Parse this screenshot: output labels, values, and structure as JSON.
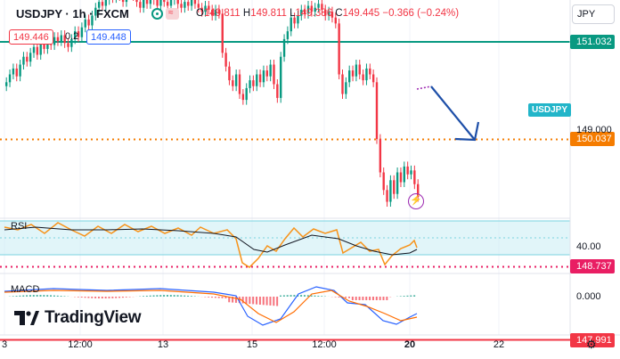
{
  "header": {
    "symbol": "USDJPY · 1h · FXCM",
    "open_label": "O",
    "open": "149.811",
    "high_label": "H",
    "high": "149.811",
    "low_label": "L",
    "low": "149.386",
    "close_label": "C",
    "close": "149.445",
    "change": "−0.366 (−0.24%)",
    "sell_price": "149.446",
    "spread": "0.2",
    "buy_price": "149.448"
  },
  "currency_button": "JPY",
  "price_tags": [
    {
      "value": "151.032",
      "color": "#089981",
      "price": 151.032
    },
    {
      "value": "150.037",
      "color": "#f57c00",
      "price": 150.037
    },
    {
      "value": "148.737",
      "color": "#e91e63",
      "price": 148.737
    },
    {
      "value": "147.991",
      "color": "#f23645",
      "price": 147.991
    }
  ],
  "price_tick": "149.000",
  "symbol_tag": "USDJPY",
  "rsi": {
    "label": "RSI",
    "tick": "40.00"
  },
  "macd": {
    "label": "MACD",
    "tick": "0.000"
  },
  "logo_text": "TradingView",
  "x_ticks": [
    "3",
    "12:00",
    "13",
    "15",
    "12:00",
    "20",
    "22"
  ],
  "colors": {
    "up": "#089981",
    "down": "#f23645",
    "rsi": "#f7931a",
    "rsi_ma": "#131722",
    "rsi_band": "#cdeff5",
    "macd": "#2962ff",
    "signal": "#ff6d00",
    "arrow": "#1e4fa8"
  },
  "chart_data": {
    "type": "candlestick",
    "closes": [
      150.62,
      150.7,
      150.76,
      150.68,
      150.8,
      150.88,
      150.83,
      150.92,
      150.98,
      150.9,
      151.02,
      150.96,
      151.06,
      151.0,
      151.08,
      151.04,
      151.1,
      151.02,
      150.98,
      151.06,
      151.14,
      151.08,
      151.18,
      151.26,
      151.2,
      151.3,
      151.38,
      151.44,
      151.4,
      151.46,
      151.52,
      151.48,
      151.55,
      151.5,
      151.44,
      151.52,
      151.58,
      151.5,
      151.44,
      151.38,
      151.46,
      151.42,
      151.5,
      151.46,
      151.4,
      151.48,
      151.44,
      151.4,
      151.46,
      151.5,
      151.42,
      151.38,
      151.44,
      151.4,
      151.46,
      151.42,
      151.38,
      151.34,
      151.4,
      151.36,
      151.3,
      151.36,
      151.32,
      150.92,
      150.78,
      150.64,
      150.58,
      150.7,
      150.5,
      150.44,
      150.56,
      150.64,
      150.58,
      150.7,
      150.62,
      150.74,
      150.68,
      150.8,
      150.6,
      150.46,
      150.88,
      151.06,
      151.14,
      151.28,
      151.22,
      151.3,
      151.36,
      151.32,
      151.4,
      151.34,
      151.38,
      151.42,
      151.36,
      151.3,
      151.34,
      151.28,
      151.22,
      150.7,
      150.5,
      150.62,
      150.74,
      150.68,
      150.8,
      150.7,
      150.64,
      150.76,
      150.7,
      150.62,
      150.04,
      149.7,
      149.52,
      149.4,
      149.62,
      149.48,
      149.7,
      149.6,
      149.76,
      149.68,
      149.72,
      149.58,
      149.45
    ],
    "rsi_range": [
      0,
      100
    ],
    "macd_zero": 0
  }
}
